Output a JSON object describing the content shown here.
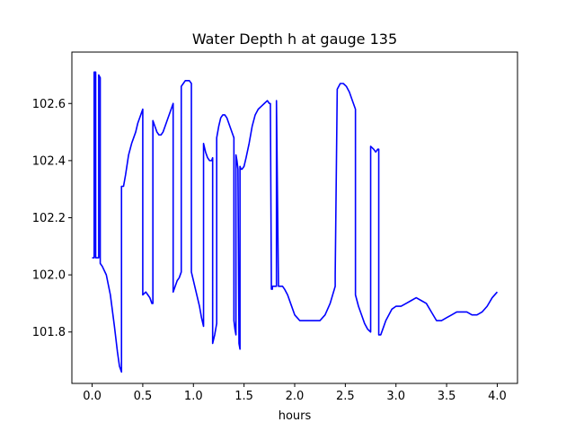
{
  "chart_data": {
    "type": "line",
    "title": "Water Depth h at gauge 135",
    "xlabel": "hours",
    "ylabel": "",
    "xlim": [
      -0.2,
      4.2
    ],
    "ylim": [
      101.62,
      102.78
    ],
    "xticks": [
      0.0,
      0.5,
      1.0,
      1.5,
      2.0,
      2.5,
      3.0,
      3.5,
      4.0
    ],
    "xtick_labels": [
      "0.0",
      "0.5",
      "1.0",
      "1.5",
      "2.0",
      "2.5",
      "3.0",
      "3.5",
      "4.0"
    ],
    "yticks": [
      101.8,
      102.0,
      102.2,
      102.4,
      102.6
    ],
    "ytick_labels": [
      "101.8",
      "102.0",
      "102.2",
      "102.4",
      "102.6"
    ],
    "grid": false,
    "legend": "none",
    "series": [
      {
        "color": "#0000ff",
        "x": [
          0.0,
          0.02,
          0.02,
          0.035,
          0.035,
          0.065,
          0.065,
          0.08,
          0.08,
          0.1,
          0.14,
          0.18,
          0.22,
          0.25,
          0.27,
          0.29,
          0.29,
          0.31,
          0.33,
          0.36,
          0.39,
          0.41,
          0.43,
          0.45,
          0.47,
          0.49,
          0.5,
          0.5,
          0.53,
          0.55,
          0.57,
          0.59,
          0.6,
          0.6,
          0.62,
          0.64,
          0.66,
          0.68,
          0.7,
          0.72,
          0.74,
          0.76,
          0.78,
          0.8,
          0.8,
          0.82,
          0.84,
          0.86,
          0.88,
          0.88,
          0.9,
          0.92,
          0.94,
          0.96,
          0.98,
          0.98,
          1.0,
          1.02,
          1.04,
          1.06,
          1.08,
          1.1,
          1.1,
          1.12,
          1.14,
          1.16,
          1.18,
          1.19,
          1.19,
          1.21,
          1.23,
          1.23,
          1.25,
          1.27,
          1.29,
          1.31,
          1.33,
          1.35,
          1.37,
          1.39,
          1.4,
          1.4,
          1.41,
          1.42,
          1.42,
          1.43,
          1.44,
          1.45,
          1.46,
          1.46,
          1.47,
          1.48,
          1.5,
          1.52,
          1.55,
          1.58,
          1.61,
          1.64,
          1.67,
          1.7,
          1.73,
          1.75,
          1.76,
          1.77,
          1.78,
          1.78,
          1.8,
          1.82,
          1.82,
          1.84,
          1.86,
          1.88,
          1.9,
          1.93,
          1.96,
          2.0,
          2.05,
          2.1,
          2.15,
          2.2,
          2.25,
          2.3,
          2.35,
          2.4,
          2.4,
          2.42,
          2.45,
          2.48,
          2.51,
          2.54,
          2.57,
          2.6,
          2.6,
          2.63,
          2.66,
          2.69,
          2.72,
          2.75,
          2.75,
          2.78,
          2.8,
          2.82,
          2.83,
          2.83,
          2.85,
          2.87,
          2.9,
          2.93,
          2.96,
          3.0,
          3.05,
          3.1,
          3.15,
          3.2,
          3.25,
          3.3,
          3.35,
          3.4,
          3.45,
          3.5,
          3.55,
          3.6,
          3.65,
          3.7,
          3.75,
          3.8,
          3.85,
          3.9,
          3.95,
          4.0
        ],
        "y": [
          102.06,
          102.06,
          102.71,
          102.71,
          102.06,
          102.06,
          102.7,
          102.69,
          102.04,
          102.03,
          102.0,
          101.93,
          101.82,
          101.73,
          101.68,
          101.66,
          102.31,
          102.31,
          102.35,
          102.42,
          102.46,
          102.48,
          102.5,
          102.53,
          102.55,
          102.57,
          102.58,
          101.93,
          101.94,
          101.93,
          101.92,
          101.9,
          101.9,
          102.54,
          102.52,
          102.5,
          102.49,
          102.49,
          102.5,
          102.52,
          102.54,
          102.56,
          102.58,
          102.6,
          101.94,
          101.96,
          101.98,
          101.99,
          102.01,
          102.66,
          102.67,
          102.68,
          102.68,
          102.68,
          102.67,
          102.01,
          101.98,
          101.95,
          101.92,
          101.89,
          101.85,
          101.82,
          102.46,
          102.43,
          102.41,
          102.4,
          102.4,
          102.41,
          101.76,
          101.79,
          101.83,
          102.48,
          102.52,
          102.55,
          102.56,
          102.56,
          102.55,
          102.53,
          102.51,
          102.49,
          102.48,
          101.84,
          101.81,
          101.79,
          102.42,
          102.4,
          102.37,
          101.76,
          101.74,
          102.38,
          102.37,
          102.37,
          102.38,
          102.41,
          102.46,
          102.52,
          102.56,
          102.58,
          102.59,
          102.6,
          102.61,
          102.6,
          102.6,
          101.95,
          101.95,
          101.96,
          101.96,
          101.96,
          102.61,
          101.96,
          101.96,
          101.96,
          101.95,
          101.93,
          101.9,
          101.86,
          101.84,
          101.84,
          101.84,
          101.84,
          101.84,
          101.86,
          101.9,
          101.96,
          102.0,
          102.65,
          102.67,
          102.67,
          102.66,
          102.64,
          102.61,
          102.58,
          101.93,
          101.89,
          101.86,
          101.83,
          101.81,
          101.8,
          102.45,
          102.44,
          102.43,
          102.44,
          102.44,
          101.79,
          101.79,
          101.81,
          101.84,
          101.86,
          101.88,
          101.89,
          101.89,
          101.9,
          101.91,
          101.92,
          101.91,
          101.9,
          101.87,
          101.84,
          101.84,
          101.85,
          101.86,
          101.87,
          101.87,
          101.87,
          101.86,
          101.86,
          101.87,
          101.89,
          101.92,
          101.94
        ]
      }
    ]
  }
}
